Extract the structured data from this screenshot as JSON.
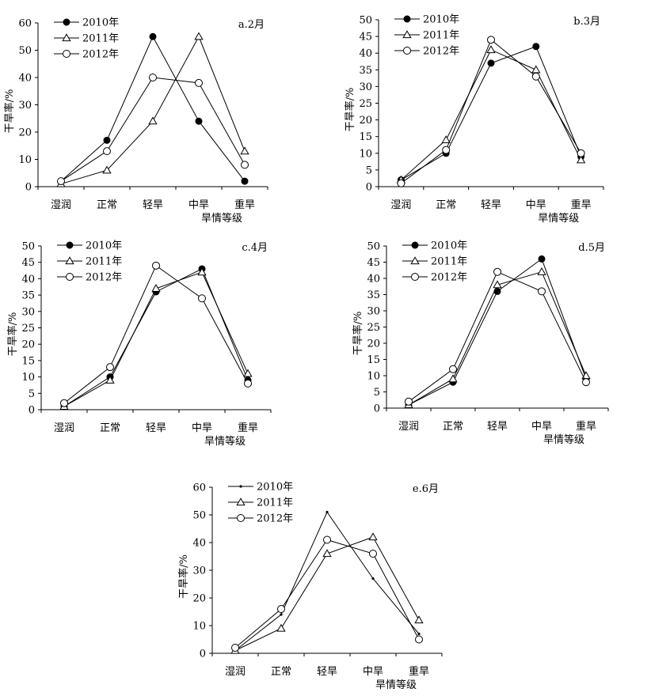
{
  "chart_data": [
    {
      "type": "line",
      "title": "a.2月",
      "xlabel": "旱情等级",
      "ylabel": "干旱率/%",
      "categories": [
        "湿润",
        "正常",
        "轻旱",
        "中旱",
        "重旱"
      ],
      "ylim": [
        0,
        60
      ],
      "yticks": [
        0,
        10,
        20,
        30,
        40,
        50,
        60
      ],
      "legend_position": "top-left",
      "grid": false,
      "series": [
        {
          "name": "2010年",
          "marker": "filled-circle",
          "values": [
            2,
            17,
            55,
            24,
            2
          ]
        },
        {
          "name": "2011年",
          "marker": "open-triangle",
          "values": [
            1,
            6,
            24,
            55,
            13
          ]
        },
        {
          "name": "2012年",
          "marker": "open-circle",
          "values": [
            2,
            13,
            40,
            38,
            8
          ]
        }
      ]
    },
    {
      "type": "line",
      "title": "b.3月",
      "xlabel": "旱情等级",
      "ylabel": "干旱率/%",
      "categories": [
        "湿润",
        "正常",
        "轻旱",
        "中旱",
        "重旱"
      ],
      "ylim": [
        0,
        50
      ],
      "yticks": [
        0,
        5,
        10,
        15,
        20,
        25,
        30,
        35,
        40,
        45,
        50
      ],
      "legend_position": "top-left",
      "grid": false,
      "series": [
        {
          "name": "2010年",
          "marker": "filled-circle",
          "values": [
            2,
            10,
            37,
            42,
            9
          ]
        },
        {
          "name": "2011年",
          "marker": "open-triangle",
          "values": [
            2,
            14,
            41,
            35,
            8
          ]
        },
        {
          "name": "2012年",
          "marker": "open-circle",
          "values": [
            1,
            11,
            44,
            33,
            10
          ]
        }
      ]
    },
    {
      "type": "line",
      "title": "c.4月",
      "xlabel": "旱情等级",
      "ylabel": "干旱率/%",
      "categories": [
        "湿润",
        "正常",
        "轻旱",
        "中旱",
        "重旱"
      ],
      "ylim": [
        0,
        50
      ],
      "yticks": [
        0,
        5,
        10,
        15,
        20,
        25,
        30,
        35,
        40,
        45,
        50
      ],
      "legend_position": "top-left",
      "grid": false,
      "series": [
        {
          "name": "2010年",
          "marker": "filled-circle",
          "values": [
            1,
            10,
            36,
            43,
            9
          ]
        },
        {
          "name": "2011年",
          "marker": "open-triangle",
          "values": [
            1,
            9,
            37,
            42,
            11
          ]
        },
        {
          "name": "2012年",
          "marker": "open-circle",
          "values": [
            2,
            13,
            44,
            34,
            8
          ]
        }
      ]
    },
    {
      "type": "line",
      "title": "d.5月",
      "xlabel": "旱情等级",
      "ylabel": "干旱率/%",
      "categories": [
        "湿润",
        "正常",
        "轻旱",
        "中旱",
        "重旱"
      ],
      "ylim": [
        0,
        50
      ],
      "yticks": [
        0,
        5,
        10,
        15,
        20,
        25,
        30,
        35,
        40,
        45,
        50
      ],
      "legend_position": "top-left",
      "grid": false,
      "series": [
        {
          "name": "2010年",
          "marker": "filled-circle",
          "values": [
            1,
            8,
            36,
            46,
            9
          ]
        },
        {
          "name": "2011年",
          "marker": "open-triangle",
          "values": [
            1,
            9,
            38,
            42,
            10
          ]
        },
        {
          "name": "2012年",
          "marker": "open-circle",
          "values": [
            2,
            12,
            42,
            36,
            8
          ]
        }
      ]
    },
    {
      "type": "line",
      "title": "e.6月",
      "xlabel": "旱情等级",
      "ylabel": "干旱率/%",
      "categories": [
        "湿润",
        "正常",
        "轻旱",
        "中旱",
        "重旱"
      ],
      "ylim": [
        0,
        60
      ],
      "yticks": [
        0,
        10,
        20,
        30,
        40,
        50,
        60
      ],
      "legend_position": "top-left",
      "grid": false,
      "series": [
        {
          "name": "2010年",
          "marker": "small-dot",
          "values": [
            1,
            14,
            51,
            27,
            7
          ]
        },
        {
          "name": "2011年",
          "marker": "open-triangle",
          "values": [
            1,
            9,
            36,
            42,
            12
          ]
        },
        {
          "name": "2012年",
          "marker": "open-circle",
          "values": [
            2,
            16,
            41,
            36,
            5
          ]
        }
      ]
    }
  ]
}
